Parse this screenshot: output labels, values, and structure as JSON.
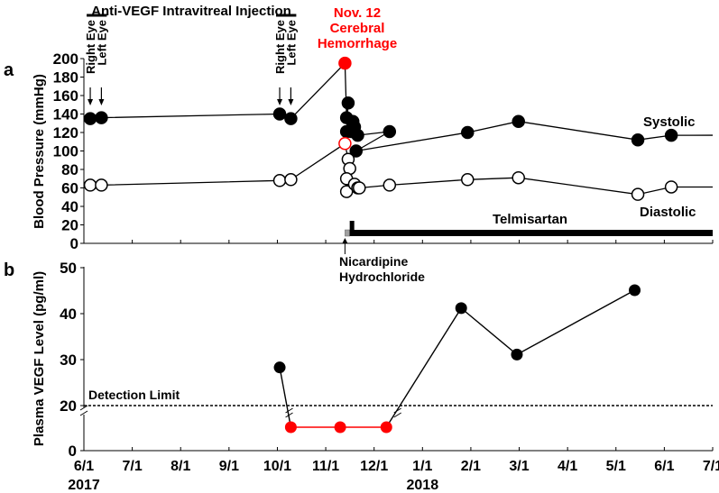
{
  "chart_data": [
    {
      "panel": "a",
      "type": "line",
      "title": "Anti-VEGF Intravitreal Injection",
      "ylabel": "Blood Pressure (mmHg)",
      "ylim": [
        0,
        200
      ],
      "yticks": [
        0,
        20,
        40,
        60,
        80,
        100,
        120,
        140,
        160,
        180,
        200
      ],
      "xlim": [
        "2017-06-01",
        "2018-07-01"
      ],
      "injections": [
        {
          "group": 1,
          "eyes": [
            {
              "label": "Right Eye",
              "date": "2017-06-05"
            },
            {
              "label": "Left Eye",
              "date": "2017-06-12"
            }
          ]
        },
        {
          "group": 2,
          "eyes": [
            {
              "label": "Right Eye",
              "date": "2017-10-02"
            },
            {
              "label": "Left Eye",
              "date": "2017-10-09"
            }
          ]
        }
      ],
      "event": {
        "lines": [
          "Nov. 12",
          "Cerebral",
          "Hemorrhage"
        ],
        "date": "2017-11-12",
        "color": "#ff0000"
      },
      "series": [
        {
          "name": "Systolic",
          "filled": true,
          "extends_to": "2018-07-01",
          "points": [
            [
              "2017-06-05",
              135
            ],
            [
              "2017-06-12",
              136
            ],
            [
              "2017-10-02",
              140
            ],
            [
              "2017-10-09",
              135
            ],
            [
              "2017-11-12",
              195,
              "event"
            ],
            [
              "2017-11-13",
              136
            ],
            [
              "2017-11-14",
              152
            ],
            [
              "2017-11-13",
              121
            ],
            [
              "2017-11-16",
              121
            ],
            [
              "2017-11-17",
              132
            ],
            [
              "2017-11-18",
              126
            ],
            [
              "2017-11-20",
              117
            ],
            [
              "2017-11-19",
              100
            ],
            [
              "2017-12-10",
              121
            ],
            [
              "2018-01-28",
              120
            ],
            [
              "2018-03-01",
              132
            ],
            [
              "2018-05-15",
              112
            ],
            [
              "2018-06-05",
              117
            ]
          ],
          "line_order": [
            0,
            1,
            2,
            3,
            4,
            5,
            6,
            7,
            8,
            9,
            10,
            11,
            13,
            12,
            14,
            15,
            16,
            17
          ]
        },
        {
          "name": "Diastolic",
          "filled": false,
          "extends_to": "2018-07-01",
          "points": [
            [
              "2017-06-05",
              63
            ],
            [
              "2017-06-12",
              63
            ],
            [
              "2017-10-02",
              68
            ],
            [
              "2017-10-09",
              69
            ],
            [
              "2017-11-12",
              108,
              "event"
            ],
            [
              "2017-11-14",
              91
            ],
            [
              "2017-11-15",
              81
            ],
            [
              "2017-11-13",
              70
            ],
            [
              "2017-11-13",
              56
            ],
            [
              "2017-11-18",
              64
            ],
            [
              "2017-11-20",
              60
            ],
            [
              "2017-11-21",
              60
            ],
            [
              "2017-12-10",
              63
            ],
            [
              "2018-01-28",
              69
            ],
            [
              "2018-03-01",
              71
            ],
            [
              "2018-05-15",
              53
            ],
            [
              "2018-06-05",
              61
            ]
          ]
        }
      ],
      "treatments": [
        {
          "name": "Nicardipine Hydrochloride",
          "lines": [
            "Nicardipine",
            "Hydrochloride"
          ],
          "start": "2017-11-12",
          "end": "2017-11-15",
          "color": "#a0a0a0"
        },
        {
          "name": "Telmisartan",
          "start": "2017-11-15",
          "end": "2018-07-01",
          "color": "#000000"
        }
      ]
    },
    {
      "panel": "b",
      "type": "line",
      "ylabel": "Plasma VEGF Level (pg/ml)",
      "ylim": [
        0,
        50
      ],
      "yticks": [
        0,
        20,
        30,
        40,
        50
      ],
      "axis_break": true,
      "detection_limit": {
        "label": "Detection Limit",
        "value": 20
      },
      "xticks": [
        "6/1",
        "7/1",
        "8/1",
        "9/1",
        "10/1",
        "11/1",
        "12/1",
        "1/1",
        "2/1",
        "3/1",
        "4/1",
        "5/1",
        "6/1",
        "7/1"
      ],
      "year_labels": [
        {
          "label": "2017",
          "tick": 0
        },
        {
          "label": "2018",
          "tick": 7
        }
      ],
      "points": [
        {
          "date": "2017-10-02",
          "value": 28.3,
          "below_limit": false
        },
        {
          "date": "2017-10-09",
          "value": null,
          "below_limit": true
        },
        {
          "date": "2017-11-09",
          "value": null,
          "below_limit": true
        },
        {
          "date": "2017-12-08",
          "value": null,
          "below_limit": true
        },
        {
          "date": "2018-01-24",
          "value": 41.2,
          "below_limit": false
        },
        {
          "date": "2018-02-28",
          "value": 31.1,
          "below_limit": false
        },
        {
          "date": "2018-05-13",
          "value": 45.1,
          "below_limit": false
        }
      ],
      "below_limit_color": "#ff0000"
    }
  ],
  "labels": {
    "panel_a": "a",
    "panel_b": "b",
    "systolic": "Systolic",
    "diastolic": "Diastolic",
    "telmisartan": "Telmisartan"
  }
}
